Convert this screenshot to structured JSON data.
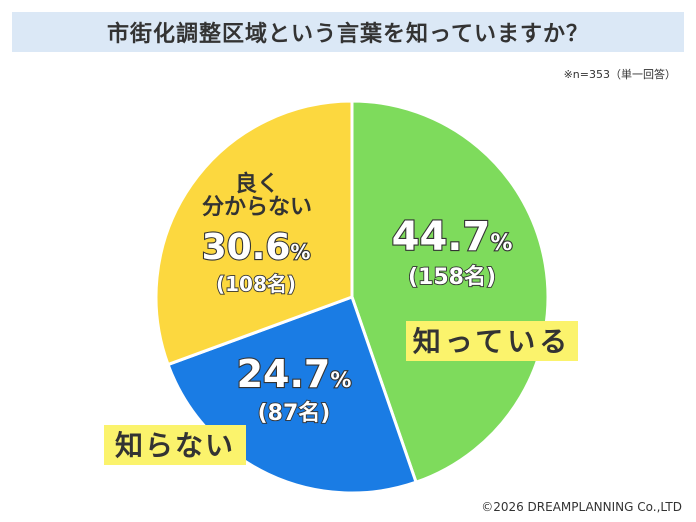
{
  "title": "市街化調整区域という言葉を知っていますか？",
  "note": "※n=353（単一回答）",
  "copyright": "©2026 DREAMPLANNING Co.,LTD",
  "chart_data": {
    "type": "pie",
    "title": "市街化調整区域という言葉を知っていますか？",
    "n": 353,
    "series": [
      {
        "label": "知っている",
        "label_lines": [
          "知っている"
        ],
        "value": 44.7,
        "count": 158,
        "percent_text": "44.7",
        "count_text": "(158名)",
        "color": "#7edb5c"
      },
      {
        "label": "知らない",
        "label_lines": [
          "知らない"
        ],
        "value": 24.7,
        "count": 87,
        "percent_text": "24.7",
        "count_text": "(87名)",
        "color": "#1a7ce4"
      },
      {
        "label": "良く分からない",
        "label_lines": [
          "良く",
          "分からない"
        ],
        "value": 30.6,
        "count": 108,
        "percent_text": "30.6",
        "count_text": "(108名)",
        "color": "#fcd83f"
      }
    ],
    "percent_unit": "%",
    "start_angle_deg": 0,
    "direction": "clockwise",
    "label_highlight_color": "#fbf36c"
  }
}
